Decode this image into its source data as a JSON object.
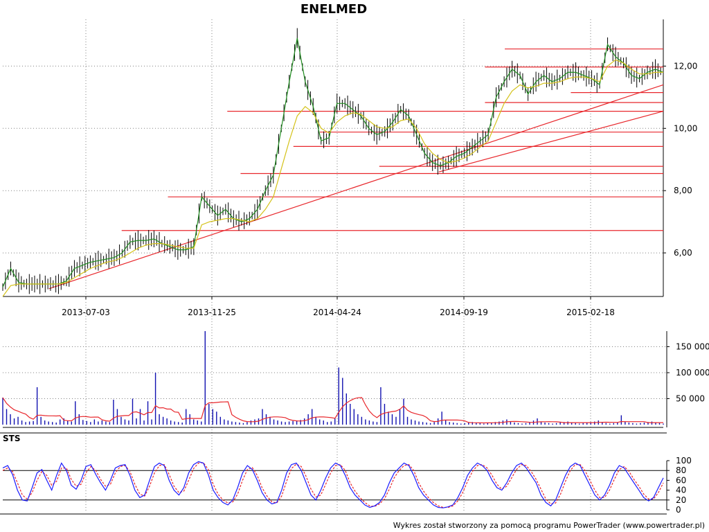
{
  "title": "ENELMED",
  "credit": "Wykres został stworzony za pomocą programu PowerTrader (www.powertrader.pl)",
  "colors": {
    "price_bar": "#000000",
    "close_line": "#1e8c1e",
    "moving_average": "#d4c21a",
    "support_lines": "#e8262b",
    "volume_bars": "#1010b0",
    "volume_average": "#e8262b",
    "sts_k": "#1a1aff",
    "sts_d": "#e8262b",
    "grid": "#808080"
  },
  "chart_data": [
    {
      "name": "price",
      "type": "line",
      "title": "ENELMED",
      "x_ticks": [
        "2013-07-03",
        "2013-11-25",
        "2014-04-24",
        "2014-09-19",
        "2015-02-18"
      ],
      "y_ticks": [
        "6,00",
        "8,00",
        "10,00",
        "12,00"
      ],
      "ylim": [
        4.6,
        13.5
      ],
      "grid": "dotted",
      "series": [
        {
          "kind": "close",
          "values": [
            4.9,
            5.5,
            5.05,
            5.0,
            5.0,
            5.0,
            5.0,
            5.0,
            5.1,
            5.5,
            5.6,
            5.7,
            5.75,
            5.8,
            5.85,
            6.0,
            6.35,
            6.4,
            6.4,
            6.45,
            6.3,
            6.2,
            6.1,
            6.1,
            6.2,
            7.8,
            7.5,
            7.2,
            7.4,
            7.1,
            7.0,
            7.1,
            7.4,
            8.0,
            8.5,
            10.0,
            11.5,
            12.9,
            11.5,
            10.7,
            9.6,
            9.7,
            10.8,
            10.8,
            10.6,
            10.4,
            10.0,
            9.8,
            9.9,
            10.2,
            10.6,
            10.4,
            9.8,
            9.2,
            8.9,
            8.8,
            8.9,
            9.1,
            9.2,
            9.4,
            9.6,
            9.8,
            11.0,
            11.5,
            11.9,
            11.7,
            11.1,
            11.5,
            11.7,
            11.5,
            11.6,
            11.8,
            11.8,
            11.7,
            11.6,
            11.4,
            12.7,
            12.3,
            12.1,
            11.7,
            11.6,
            11.8,
            11.9,
            11.8
          ]
        },
        {
          "kind": "moving_average",
          "values": [
            4.6,
            4.95,
            5.0,
            5.0,
            5.0,
            5.0,
            5.0,
            5.0,
            5.05,
            5.2,
            5.35,
            5.5,
            5.6,
            5.7,
            5.75,
            5.85,
            6.0,
            6.15,
            6.25,
            6.3,
            6.3,
            6.25,
            6.2,
            6.15,
            6.15,
            6.9,
            7.0,
            7.05,
            7.1,
            7.1,
            7.05,
            7.0,
            7.1,
            7.4,
            7.8,
            8.7,
            9.6,
            10.4,
            10.7,
            10.5,
            10.0,
            9.85,
            10.2,
            10.4,
            10.5,
            10.45,
            10.25,
            10.05,
            10.0,
            10.05,
            10.25,
            10.3,
            10.0,
            9.5,
            9.2,
            9.0,
            8.9,
            8.95,
            9.05,
            9.2,
            9.4,
            9.6,
            10.2,
            10.8,
            11.2,
            11.4,
            11.3,
            11.35,
            11.45,
            11.45,
            11.5,
            11.6,
            11.65,
            11.65,
            11.6,
            11.5,
            12.0,
            12.2,
            12.1,
            11.9,
            11.75,
            11.75,
            11.8,
            11.8
          ]
        }
      ],
      "horizontal_levels": [
        {
          "y": 12.55,
          "from_pct": 0.76
        },
        {
          "y": 11.97,
          "from_pct": 0.73
        },
        {
          "y": 11.15,
          "from_pct": 0.86
        },
        {
          "y": 10.83,
          "from_pct": 0.73
        },
        {
          "y": 10.55,
          "from_pct": 0.34
        },
        {
          "y": 10.55,
          "from_pct": 0.34
        },
        {
          "y": 9.88,
          "from_pct": 0.48
        },
        {
          "y": 9.42,
          "from_pct": 0.44
        },
        {
          "y": 8.78,
          "from_pct": 0.57
        },
        {
          "y": 8.55,
          "from_pct": 0.36
        },
        {
          "y": 7.8,
          "from_pct": 0.25
        },
        {
          "y": 6.72,
          "from_pct": 0.18
        }
      ],
      "trendlines": [
        {
          "x1_pct": 0.07,
          "y1": 4.85,
          "x2_pct": 1.0,
          "y2": 11.4
        },
        {
          "x1_pct": 0.66,
          "y1": 8.6,
          "x2_pct": 1.0,
          "y2": 10.55
        }
      ]
    },
    {
      "name": "volume",
      "type": "bar",
      "y_ticks": [
        "50 000",
        "100 000",
        "150 000"
      ],
      "ylim": [
        0,
        180000
      ],
      "values": [
        52000,
        30000,
        20000,
        12000,
        15000,
        8000,
        5000,
        6000,
        7000,
        72000,
        15000,
        8000,
        6000,
        5000,
        4000,
        10000,
        12000,
        8000,
        6000,
        45000,
        20000,
        9000,
        7000,
        5000,
        10000,
        6000,
        8000,
        6000,
        5000,
        48000,
        30000,
        15000,
        10000,
        8000,
        50000,
        12000,
        30000,
        8000,
        45000,
        10000,
        100000,
        20000,
        15000,
        12000,
        8000,
        6000,
        5000,
        4000,
        30000,
        20000,
        10000,
        8000,
        6000,
        180000,
        40000,
        30000,
        25000,
        15000,
        10000,
        8000,
        6000,
        5000,
        4000,
        3000,
        5000,
        8000,
        10000,
        12000,
        30000,
        20000,
        15000,
        10000,
        8000,
        6000,
        5000,
        6000,
        7000,
        8000,
        9000,
        12000,
        20000,
        30000,
        15000,
        10000,
        8000,
        5000,
        6000,
        12000,
        110000,
        90000,
        60000,
        40000,
        30000,
        20000,
        15000,
        10000,
        8000,
        6000,
        5000,
        72000,
        40000,
        25000,
        20000,
        15000,
        30000,
        50000,
        15000,
        10000,
        8000,
        6000,
        5000,
        4000,
        3000,
        5000,
        12000,
        25000,
        8000,
        5000,
        4000,
        3000,
        2000,
        3000,
        4000,
        5000,
        4000,
        3000,
        2000,
        3000,
        4000,
        5000,
        6000,
        8000,
        10000,
        6000,
        4000,
        3000,
        2000,
        3000,
        4000,
        8000,
        12000,
        6000,
        4000,
        3000,
        2000,
        3000,
        4000,
        5000,
        6000,
        4000,
        3000,
        2000,
        3000,
        4000,
        5000,
        6000,
        8000,
        4000,
        3000,
        2000,
        3000,
        4000,
        18000,
        6000,
        4000,
        3000,
        2000,
        3000,
        4000,
        5000,
        6000,
        4000,
        3000,
        2000
      ]
    },
    {
      "name": "STS",
      "type": "line",
      "title": "STS",
      "y_ticks": [
        "0",
        "20",
        "40",
        "60",
        "80",
        "100"
      ],
      "ylim": [
        0,
        100
      ],
      "reference_lines": [
        20,
        80
      ],
      "series": [
        {
          "kind": "%K",
          "values": [
            85,
            90,
            72,
            40,
            20,
            18,
            45,
            75,
            82,
            60,
            40,
            70,
            95,
            80,
            50,
            42,
            60,
            88,
            92,
            72,
            55,
            40,
            60,
            85,
            90,
            92,
            70,
            40,
            25,
            30,
            60,
            88,
            95,
            90,
            60,
            40,
            30,
            45,
            75,
            92,
            98,
            95,
            72,
            40,
            25,
            15,
            10,
            20,
            45,
            75,
            90,
            82,
            60,
            35,
            20,
            12,
            15,
            40,
            75,
            92,
            95,
            80,
            55,
            30,
            20,
            40,
            65,
            85,
            95,
            90,
            70,
            45,
            30,
            20,
            10,
            5,
            8,
            15,
            30,
            55,
            75,
            85,
            95,
            90,
            70,
            45,
            30,
            20,
            10,
            5,
            4,
            6,
            10,
            25,
            45,
            70,
            85,
            95,
            90,
            80,
            60,
            45,
            40,
            55,
            75,
            90,
            95,
            85,
            70,
            55,
            30,
            15,
            8,
            20,
            45,
            70,
            88,
            95,
            90,
            70,
            50,
            30,
            20,
            30,
            50,
            75,
            90,
            85,
            70,
            55,
            40,
            25,
            18,
            25,
            45,
            65
          ]
        },
        {
          "kind": "%D",
          "values": [
            80,
            85,
            78,
            55,
            30,
            22,
            35,
            60,
            78,
            70,
            50,
            58,
            85,
            85,
            62,
            48,
            52,
            75,
            88,
            80,
            62,
            48,
            52,
            75,
            88,
            90,
            78,
            52,
            32,
            28,
            48,
            75,
            90,
            92,
            72,
            48,
            35,
            38,
            60,
            84,
            95,
            96,
            82,
            52,
            32,
            20,
            14,
            16,
            32,
            60,
            82,
            86,
            70,
            45,
            28,
            16,
            14,
            28,
            58,
            84,
            93,
            88,
            68,
            42,
            26,
            30,
            52,
            75,
            90,
            92,
            80,
            55,
            38,
            25,
            15,
            8,
            7,
            12,
            22,
            42,
            65,
            80,
            90,
            92,
            80,
            55,
            38,
            25,
            15,
            8,
            5,
            5,
            8,
            18,
            35,
            58,
            78,
            90,
            92,
            85,
            70,
            52,
            42,
            48,
            65,
            82,
            92,
            90,
            78,
            62,
            42,
            22,
            12,
            14,
            32,
            58,
            80,
            92,
            92,
            80,
            60,
            40,
            25,
            25,
            40,
            62,
            82,
            88,
            78,
            62,
            48,
            32,
            22,
            22,
            35,
            55
          ]
        }
      ]
    }
  ]
}
